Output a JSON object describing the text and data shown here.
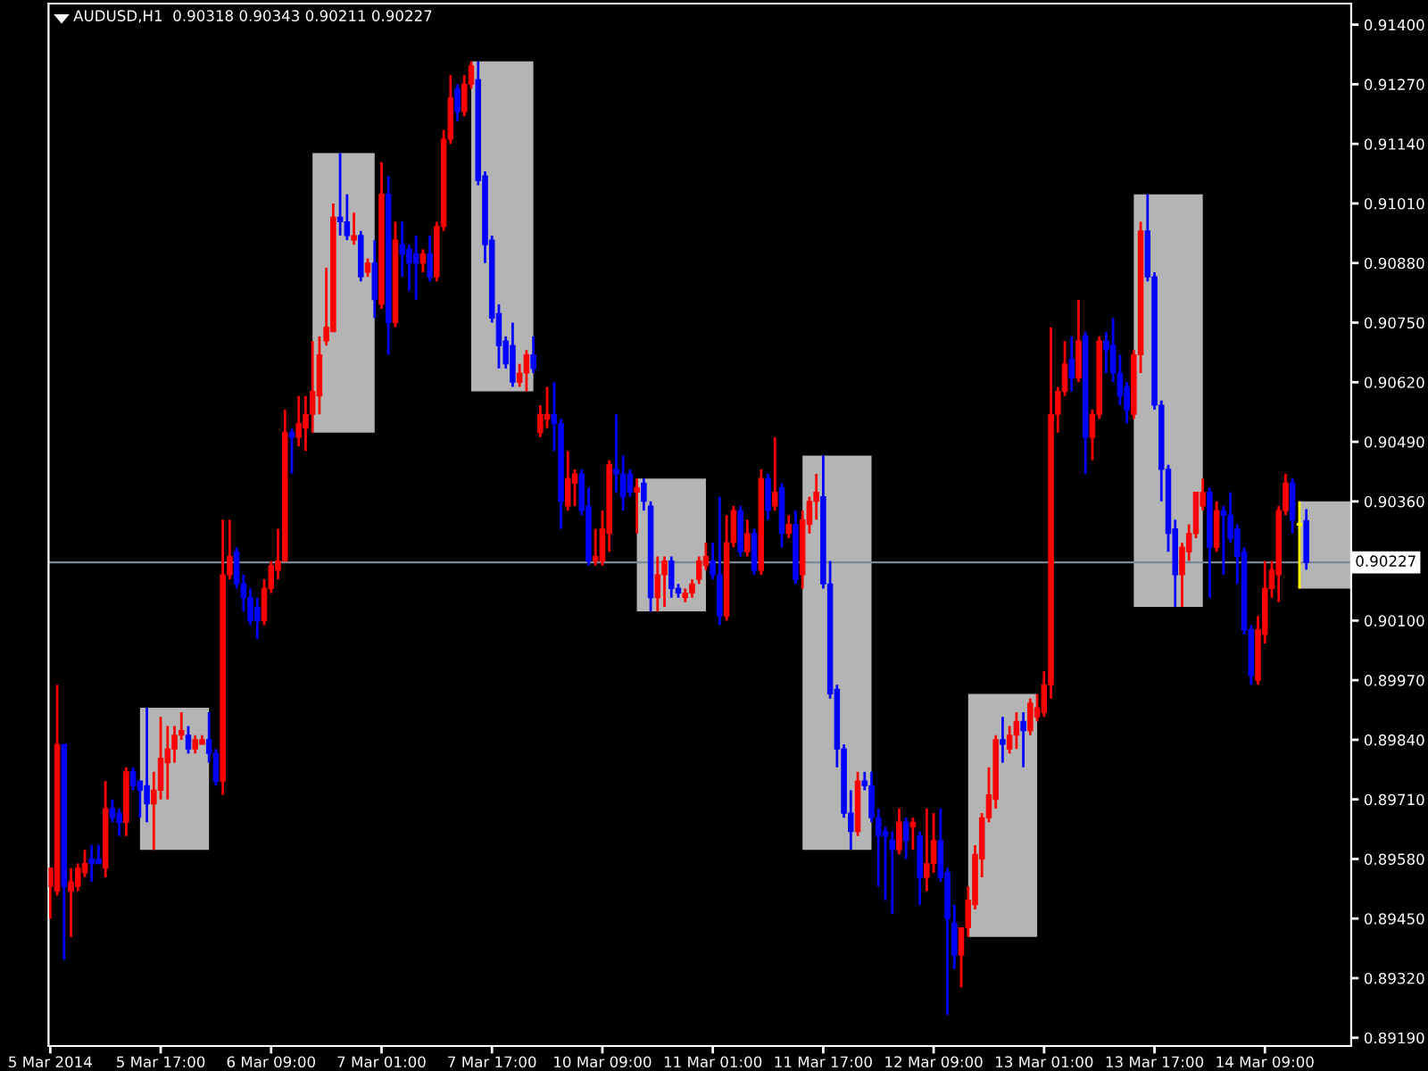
{
  "chart_data": {
    "type": "candlestick",
    "title": "AUDUSD,H1  0.90318 0.90343 0.90211 0.90227",
    "categories": [
      "5 Mar 2014",
      null,
      null,
      null,
      null,
      null,
      null,
      null,
      null,
      null,
      null,
      null,
      null,
      null,
      null,
      null,
      "5 Mar 17:00",
      null,
      null,
      null,
      null,
      null,
      null,
      null,
      null,
      null,
      null,
      null,
      null,
      null,
      null,
      null,
      "6 Mar 09:00",
      null,
      null,
      null,
      null,
      null,
      null,
      null,
      null,
      null,
      null,
      null,
      null,
      null,
      null,
      null,
      "7 Mar 01:00",
      null,
      null,
      null,
      null,
      null,
      null,
      null,
      null,
      null,
      null,
      null,
      null,
      null,
      null,
      null,
      "7 Mar 17:00",
      null,
      null,
      null,
      null,
      null,
      null,
      null,
      null,
      null,
      null,
      null,
      null,
      null,
      null,
      null,
      "10 Mar 09:00",
      null,
      null,
      null,
      null,
      null,
      null,
      null,
      null,
      null,
      null,
      null,
      null,
      null,
      null,
      null,
      "11 Mar 01:00",
      null,
      null,
      null,
      null,
      null,
      null,
      null,
      null,
      null,
      null,
      null,
      null,
      null,
      null,
      null,
      "11 Mar 17:00",
      null,
      null,
      null,
      null,
      null,
      null,
      null,
      null,
      null,
      null,
      null,
      null,
      null,
      null,
      null,
      "12 Mar 09:00",
      null,
      null,
      null,
      null,
      null,
      null,
      null,
      null,
      null,
      null,
      null,
      null,
      null,
      null,
      null,
      "13 Mar 01:00",
      null,
      null,
      null,
      null,
      null,
      null,
      null,
      null,
      null,
      null,
      null,
      null,
      null,
      null,
      null,
      "13 Mar 17:00",
      null,
      null,
      null,
      null,
      null,
      null,
      null,
      null,
      null,
      null,
      null,
      null,
      null,
      null,
      null,
      "14 Mar 09:00",
      null,
      null,
      null,
      null,
      null,
      null
    ],
    "ohlc": [
      [
        0.8952,
        0.8956,
        0.8945,
        0.8956
      ],
      [
        0.8951,
        0.8996,
        0.895,
        0.8983
      ],
      [
        0.8983,
        0.8983,
        0.8936,
        0.8952
      ],
      [
        0.8951,
        0.8956,
        0.8941,
        0.8953
      ],
      [
        0.8952,
        0.8957,
        0.8951,
        0.8956
      ],
      [
        0.8955,
        0.896,
        0.8954,
        0.8957
      ],
      [
        0.8958,
        0.8961,
        0.8953,
        0.8957
      ],
      [
        0.8958,
        0.8961,
        0.8957,
        0.8957
      ],
      [
        0.8956,
        0.8975,
        0.8954,
        0.8969
      ],
      [
        0.8969,
        0.8971,
        0.8966,
        0.8967
      ],
      [
        0.8968,
        0.8969,
        0.8963,
        0.8966
      ],
      [
        0.8966,
        0.8978,
        0.8963,
        0.8977
      ],
      [
        0.8977,
        0.8978,
        0.8973,
        0.8974
      ],
      [
        0.8975,
        0.8975,
        0.8967,
        0.8973
      ],
      [
        0.8974,
        0.8991,
        0.8966,
        0.897
      ],
      [
        0.897,
        0.8977,
        0.896,
        0.8973
      ],
      [
        0.8973,
        0.8989,
        0.8971,
        0.898
      ],
      [
        0.8979,
        0.8987,
        0.8971,
        0.8982
      ],
      [
        0.8982,
        0.8987,
        0.8979,
        0.8985
      ],
      [
        0.8985,
        0.899,
        0.8984,
        0.8986
      ],
      [
        0.8985,
        0.8987,
        0.8981,
        0.8982
      ],
      [
        0.8982,
        0.8985,
        0.8981,
        0.8984
      ],
      [
        0.8983,
        0.8985,
        0.8983,
        0.8984
      ],
      [
        0.8984,
        0.899,
        0.8979,
        0.8981
      ],
      [
        0.8981,
        0.8982,
        0.8974,
        0.8975
      ],
      [
        0.8975,
        0.9032,
        0.8972,
        0.902
      ],
      [
        0.902,
        0.9032,
        0.9019,
        0.9024
      ],
      [
        0.9025,
        0.9026,
        0.9017,
        0.9018
      ],
      [
        0.9018,
        0.902,
        0.9012,
        0.9015
      ],
      [
        0.9015,
        0.9017,
        0.9009,
        0.901
      ],
      [
        0.9013,
        0.9015,
        0.9006,
        0.901
      ],
      [
        0.901,
        0.9019,
        0.9009,
        0.9017
      ],
      [
        0.9017,
        0.9023,
        0.9016,
        0.9022
      ],
      [
        0.9021,
        0.903,
        0.9019,
        0.9023
      ],
      [
        0.9023,
        0.9056,
        0.9023,
        0.9051
      ],
      [
        0.9051,
        0.9052,
        0.9042,
        0.905
      ],
      [
        0.905,
        0.9059,
        0.9048,
        0.9053
      ],
      [
        0.9052,
        0.9059,
        0.9047,
        0.9055
      ],
      [
        0.9055,
        0.9071,
        0.9051,
        0.906
      ],
      [
        0.9059,
        0.9072,
        0.9055,
        0.9068
      ],
      [
        0.9071,
        0.9087,
        0.907,
        0.9074
      ],
      [
        0.9073,
        0.9101,
        0.9073,
        0.9098
      ],
      [
        0.9098,
        0.9112,
        0.9094,
        0.9097
      ],
      [
        0.9097,
        0.9103,
        0.9093,
        0.9094
      ],
      [
        0.9093,
        0.9099,
        0.9092,
        0.9094
      ],
      [
        0.9094,
        0.9095,
        0.9084,
        0.9085
      ],
      [
        0.9086,
        0.9089,
        0.9085,
        0.9088
      ],
      [
        0.9088,
        0.9093,
        0.9076,
        0.908
      ],
      [
        0.9079,
        0.911,
        0.9078,
        0.9103
      ],
      [
        0.9103,
        0.9107,
        0.9068,
        0.9075
      ],
      [
        0.9075,
        0.9097,
        0.9074,
        0.9093
      ],
      [
        0.9092,
        0.9097,
        0.9085,
        0.909
      ],
      [
        0.9091,
        0.9092,
        0.9082,
        0.9088
      ],
      [
        0.909,
        0.9094,
        0.908,
        0.9088
      ],
      [
        0.9088,
        0.9091,
        0.9086,
        0.909
      ],
      [
        0.909,
        0.9094,
        0.9084,
        0.9085
      ],
      [
        0.9085,
        0.9097,
        0.9084,
        0.9096
      ],
      [
        0.9096,
        0.9117,
        0.9095,
        0.9115
      ],
      [
        0.9115,
        0.9129,
        0.9114,
        0.9124
      ],
      [
        0.9126,
        0.9127,
        0.9119,
        0.9121
      ],
      [
        0.9121,
        0.9129,
        0.912,
        0.9127
      ],
      [
        0.9127,
        0.9132,
        0.9126,
        0.9131
      ],
      [
        0.9128,
        0.9132,
        0.9105,
        0.9106
      ],
      [
        0.9107,
        0.9108,
        0.9088,
        0.9092
      ],
      [
        0.9093,
        0.9094,
        0.9075,
        0.9076
      ],
      [
        0.9077,
        0.9079,
        0.9065,
        0.907
      ],
      [
        0.9071,
        0.9072,
        0.9065,
        0.9066
      ],
      [
        0.907,
        0.9075,
        0.9061,
        0.9062
      ],
      [
        0.9062,
        0.9066,
        0.9061,
        0.9064
      ],
      [
        0.9064,
        0.9069,
        0.906,
        0.9068
      ],
      [
        0.9068,
        0.9072,
        0.9064,
        0.9065
      ],
      [
        0.9051,
        0.9057,
        0.905,
        0.9055
      ],
      [
        0.9054,
        0.9061,
        0.9052,
        0.9055
      ],
      [
        0.9055,
        0.9062,
        0.9047,
        0.9053
      ],
      [
        0.9053,
        0.9054,
        0.903,
        0.9036
      ],
      [
        0.9035,
        0.9047,
        0.9034,
        0.9041
      ],
      [
        0.904,
        0.9043,
        0.9035,
        0.9042
      ],
      [
        0.9042,
        0.9043,
        0.9033,
        0.9034
      ],
      [
        0.9035,
        0.9039,
        0.9022,
        0.9023
      ],
      [
        0.9023,
        0.903,
        0.9022,
        0.9024
      ],
      [
        0.9023,
        0.9034,
        0.9022,
        0.903
      ],
      [
        0.9029,
        0.9045,
        0.9025,
        0.9044
      ],
      [
        0.9043,
        0.9055,
        0.9038,
        0.9042
      ],
      [
        0.9042,
        0.9046,
        0.9034,
        0.9037
      ],
      [
        0.9042,
        0.9043,
        0.9037,
        0.9038
      ],
      [
        0.9038,
        0.9041,
        0.9029,
        0.9039
      ],
      [
        0.904,
        0.9041,
        0.9034,
        0.9036
      ],
      [
        0.9035,
        0.9036,
        0.9012,
        0.9015
      ],
      [
        0.9015,
        0.9024,
        0.9012,
        0.902
      ],
      [
        0.902,
        0.9024,
        0.9013,
        0.9023
      ],
      [
        0.9023,
        0.9024,
        0.9015,
        0.9017
      ],
      [
        0.9017,
        0.9018,
        0.9015,
        0.9016
      ],
      [
        0.9015,
        0.9017,
        0.9014,
        0.9016
      ],
      [
        0.9016,
        0.9019,
        0.9015,
        0.9018
      ],
      [
        0.9019,
        0.9024,
        0.9018,
        0.9023
      ],
      [
        0.9022,
        0.9027,
        0.9021,
        0.9024
      ],
      [
        0.9023,
        0.9027,
        0.9019,
        0.902
      ],
      [
        0.902,
        0.9037,
        0.9009,
        0.9011
      ],
      [
        0.9011,
        0.9033,
        0.901,
        0.9027
      ],
      [
        0.9027,
        0.9035,
        0.9026,
        0.9034
      ],
      [
        0.9034,
        0.9035,
        0.9024,
        0.9025
      ],
      [
        0.9025,
        0.9032,
        0.9024,
        0.9029
      ],
      [
        0.9029,
        0.903,
        0.902,
        0.9021
      ],
      [
        0.9021,
        0.9043,
        0.902,
        0.9041
      ],
      [
        0.9041,
        0.9042,
        0.9032,
        0.9034
      ],
      [
        0.9035,
        0.905,
        0.9034,
        0.9038
      ],
      [
        0.9039,
        0.904,
        0.9026,
        0.9029
      ],
      [
        0.9029,
        0.9033,
        0.9028,
        0.9031
      ],
      [
        0.9031,
        0.9034,
        0.9018,
        0.9019
      ],
      [
        0.902,
        0.9034,
        0.9017,
        0.9032
      ],
      [
        0.9031,
        0.9037,
        0.9029,
        0.9036
      ],
      [
        0.9036,
        0.9042,
        0.9032,
        0.9038
      ],
      [
        0.9037,
        0.9046,
        0.9017,
        0.9018
      ],
      [
        0.9018,
        0.9023,
        0.8993,
        0.8994
      ],
      [
        0.8995,
        0.8996,
        0.8978,
        0.8982
      ],
      [
        0.8982,
        0.8983,
        0.8967,
        0.8968
      ],
      [
        0.8968,
        0.8973,
        0.896,
        0.8964
      ],
      [
        0.8964,
        0.8977,
        0.8963,
        0.8975
      ],
      [
        0.8975,
        0.8977,
        0.8973,
        0.8974
      ],
      [
        0.8974,
        0.8977,
        0.8966,
        0.8967
      ],
      [
        0.8967,
        0.8969,
        0.8952,
        0.8963
      ],
      [
        0.8964,
        0.8965,
        0.8949,
        0.8963
      ],
      [
        0.8962,
        0.8964,
        0.8946,
        0.896
      ],
      [
        0.896,
        0.8969,
        0.8959,
        0.8966
      ],
      [
        0.8966,
        0.8967,
        0.8958,
        0.8962
      ],
      [
        0.8965,
        0.8967,
        0.896,
        0.8966
      ],
      [
        0.8963,
        0.8964,
        0.8948,
        0.8954
      ],
      [
        0.8954,
        0.8969,
        0.8951,
        0.8957
      ],
      [
        0.8957,
        0.8968,
        0.8955,
        0.8962
      ],
      [
        0.8962,
        0.8969,
        0.8953,
        0.8954
      ],
      [
        0.8955,
        0.8956,
        0.8924,
        0.8945
      ],
      [
        0.8944,
        0.8948,
        0.8934,
        0.8937
      ],
      [
        0.8937,
        0.8943,
        0.893,
        0.8943
      ],
      [
        0.8943,
        0.8952,
        0.8941,
        0.8949
      ],
      [
        0.8948,
        0.8961,
        0.8947,
        0.8959
      ],
      [
        0.8958,
        0.8968,
        0.8954,
        0.8967
      ],
      [
        0.8967,
        0.8978,
        0.8966,
        0.8972
      ],
      [
        0.8971,
        0.8985,
        0.8969,
        0.8984
      ],
      [
        0.8984,
        0.8989,
        0.8979,
        0.8983
      ],
      [
        0.8982,
        0.8987,
        0.8981,
        0.8985
      ],
      [
        0.8985,
        0.899,
        0.8982,
        0.8988
      ],
      [
        0.8988,
        0.899,
        0.8978,
        0.8986
      ],
      [
        0.8986,
        0.8993,
        0.8985,
        0.8992
      ],
      [
        0.8989,
        0.8994,
        0.8988,
        0.8991
      ],
      [
        0.899,
        0.8999,
        0.8989,
        0.8996
      ],
      [
        0.8996,
        0.9074,
        0.8993,
        0.9055
      ],
      [
        0.9055,
        0.9061,
        0.9051,
        0.906
      ],
      [
        0.906,
        0.9071,
        0.9059,
        0.9066
      ],
      [
        0.9067,
        0.9072,
        0.906,
        0.9063
      ],
      [
        0.9063,
        0.908,
        0.9062,
        0.9071
      ],
      [
        0.9072,
        0.9073,
        0.9042,
        0.905
      ],
      [
        0.905,
        0.9056,
        0.9045,
        0.9055
      ],
      [
        0.9055,
        0.9072,
        0.9054,
        0.9071
      ],
      [
        0.9071,
        0.9073,
        0.9064,
        0.9069
      ],
      [
        0.907,
        0.9076,
        0.9062,
        0.9064
      ],
      [
        0.9064,
        0.9068,
        0.9057,
        0.9059
      ],
      [
        0.9061,
        0.9062,
        0.9053,
        0.9056
      ],
      [
        0.9055,
        0.9069,
        0.9054,
        0.9068
      ],
      [
        0.9068,
        0.9097,
        0.9064,
        0.9095
      ],
      [
        0.9095,
        0.9103,
        0.9084,
        0.9085
      ],
      [
        0.9085,
        0.9086,
        0.9056,
        0.9057
      ],
      [
        0.9057,
        0.9058,
        0.9036,
        0.9043
      ],
      [
        0.9043,
        0.9044,
        0.9025,
        0.9029
      ],
      [
        0.903,
        0.9032,
        0.9013,
        0.902
      ],
      [
        0.902,
        0.9027,
        0.9013,
        0.9026
      ],
      [
        0.9025,
        0.9031,
        0.9023,
        0.9029
      ],
      [
        0.9029,
        0.9038,
        0.9028,
        0.9038
      ],
      [
        0.9035,
        0.9041,
        0.9034,
        0.9038
      ],
      [
        0.9038,
        0.9039,
        0.9015,
        0.9026
      ],
      [
        0.9026,
        0.9036,
        0.9025,
        0.9034
      ],
      [
        0.9034,
        0.9035,
        0.902,
        0.9033
      ],
      [
        0.9033,
        0.9038,
        0.9027,
        0.9028
      ],
      [
        0.903,
        0.9031,
        0.9018,
        0.9024
      ],
      [
        0.9025,
        0.9026,
        0.9007,
        0.9008
      ],
      [
        0.9008,
        0.9009,
        0.8996,
        0.8998
      ],
      [
        0.8997,
        0.9011,
        0.8996,
        0.9008
      ],
      [
        0.9007,
        0.9023,
        0.9005,
        0.9017
      ],
      [
        0.9017,
        0.9023,
        0.9015,
        0.9021
      ],
      [
        0.902,
        0.9035,
        0.9014,
        0.9034
      ],
      [
        0.9034,
        0.9042,
        0.9033,
        0.904
      ],
      [
        0.904,
        0.9041,
        0.9029,
        0.9032
      ],
      [
        0.9031,
        0.9036,
        0.9017,
        0.9031
      ],
      [
        0.90318,
        0.90343,
        0.90211,
        0.90227
      ]
    ],
    "colors": [
      "#ff0000",
      "#ff0000",
      "#0000ff",
      "#ff0000",
      "#ff0000",
      "#ff0000",
      "#0000ff",
      "#0000ff",
      "#ff0000",
      "#0000ff",
      "#0000ff",
      "#ff0000",
      "#0000ff",
      "#0000ff",
      "#0000ff",
      "#ff0000",
      "#ff0000",
      "#ff0000",
      "#ff0000",
      "#ff0000",
      "#0000ff",
      "#ff0000",
      "#ff0000",
      "#0000ff",
      "#0000ff",
      "#ff0000",
      "#ff0000",
      "#0000ff",
      "#0000ff",
      "#0000ff",
      "#0000ff",
      "#ff0000",
      "#ff0000",
      "#ff0000",
      "#ff0000",
      "#0000ff",
      "#ff0000",
      "#ff0000",
      "#ff0000",
      "#ff0000",
      "#ff0000",
      "#ff0000",
      "#0000ff",
      "#0000ff",
      "#ff0000",
      "#0000ff",
      "#ff0000",
      "#0000ff",
      "#ff0000",
      "#0000ff",
      "#ff0000",
      "#0000ff",
      "#0000ff",
      "#0000ff",
      "#ff0000",
      "#0000ff",
      "#ff0000",
      "#ff0000",
      "#ff0000",
      "#0000ff",
      "#ff0000",
      "#ff0000",
      "#0000ff",
      "#0000ff",
      "#0000ff",
      "#0000ff",
      "#0000ff",
      "#0000ff",
      "#ff0000",
      "#ff0000",
      "#0000ff",
      "#ff0000",
      "#ff0000",
      "#0000ff",
      "#0000ff",
      "#ff0000",
      "#ff0000",
      "#0000ff",
      "#0000ff",
      "#ff0000",
      "#ff0000",
      "#ff0000",
      "#0000ff",
      "#0000ff",
      "#0000ff",
      "#ff0000",
      "#0000ff",
      "#0000ff",
      "#ff0000",
      "#ff0000",
      "#0000ff",
      "#0000ff",
      "#ff0000",
      "#ff0000",
      "#ff0000",
      "#ff0000",
      "#0000ff",
      "#0000ff",
      "#ff0000",
      "#ff0000",
      "#0000ff",
      "#ff0000",
      "#0000ff",
      "#ff0000",
      "#0000ff",
      "#ff0000",
      "#0000ff",
      "#ff0000",
      "#0000ff",
      "#ff0000",
      "#ff0000",
      "#ff0000",
      "#0000ff",
      "#0000ff",
      "#0000ff",
      "#0000ff",
      "#0000ff",
      "#ff0000",
      "#0000ff",
      "#0000ff",
      "#0000ff",
      "#0000ff",
      "#0000ff",
      "#ff0000",
      "#0000ff",
      "#ff0000",
      "#0000ff",
      "#ff0000",
      "#ff0000",
      "#0000ff",
      "#0000ff",
      "#0000ff",
      "#ff0000",
      "#ff0000",
      "#ff0000",
      "#ff0000",
      "#ff0000",
      "#ff0000",
      "#0000ff",
      "#ff0000",
      "#ff0000",
      "#0000ff",
      "#ff0000",
      "#ff0000",
      "#ff0000",
      "#ff0000",
      "#ff0000",
      "#ff0000",
      "#0000ff",
      "#ff0000",
      "#0000ff",
      "#ff0000",
      "#ff0000",
      "#0000ff",
      "#0000ff",
      "#0000ff",
      "#0000ff",
      "#ff0000",
      "#ff0000",
      "#0000ff",
      "#0000ff",
      "#0000ff",
      "#0000ff",
      "#0000ff",
      "#ff0000",
      "#ff0000",
      "#ff0000",
      "#ff0000",
      "#0000ff",
      "#ff0000",
      "#0000ff",
      "#0000ff",
      "#0000ff",
      "#0000ff",
      "#0000ff",
      "#ff0000",
      "#ff0000",
      "#ff0000",
      "#ff0000",
      "#ff0000",
      "#0000ff",
      "#ffff00",
      "#0000ff"
    ],
    "ylim": [
      0.89172,
      0.91446
    ],
    "yticks": [
      {
        "value": 0.914,
        "label": "0.91400"
      },
      {
        "value": 0.9127,
        "label": "0.91270"
      },
      {
        "value": 0.9114,
        "label": "0.91140"
      },
      {
        "value": 0.9101,
        "label": "0.91010"
      },
      {
        "value": 0.9088,
        "label": "0.90880"
      },
      {
        "value": 0.9075,
        "label": "0.90750"
      },
      {
        "value": 0.9062,
        "label": "0.90620"
      },
      {
        "value": 0.9049,
        "label": "0.90490"
      },
      {
        "value": 0.9036,
        "label": "0.90360"
      },
      {
        "value": 0.901,
        "label": "0.90100"
      },
      {
        "value": 0.8997,
        "label": "0.89970"
      },
      {
        "value": 0.8984,
        "label": "0.89840"
      },
      {
        "value": 0.8971,
        "label": "0.89710"
      },
      {
        "value": 0.8958,
        "label": "0.89580"
      },
      {
        "value": 0.8945,
        "label": "0.89450"
      },
      {
        "value": 0.8932,
        "label": "0.89320"
      },
      {
        "value": 0.8919,
        "label": "0.89190"
      }
    ],
    "ref_lines": [
      {
        "axis": "y",
        "value": 0.90227,
        "label": "0.90227",
        "color": "#778899"
      }
    ]
  }
}
